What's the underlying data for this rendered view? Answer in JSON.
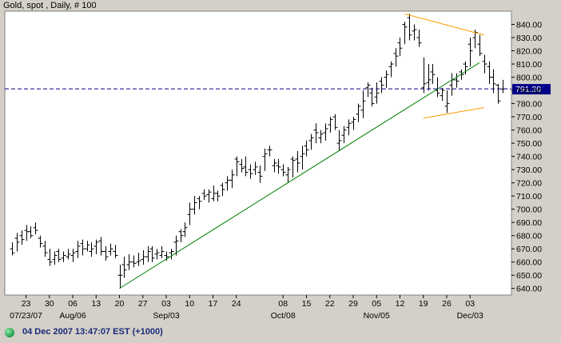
{
  "header": {
    "title": "Gold, spot , Daily, # 100"
  },
  "status": {
    "timestamp": "04 Dec 2007 13:47:07 EST (+1000)"
  },
  "chart_data": {
    "type": "ohlc",
    "title": "Gold, spot , Daily, # 100",
    "ylim": [
      635,
      850
    ],
    "y_ticks": [
      640,
      650,
      660,
      670,
      680,
      690,
      700,
      710,
      720,
      730,
      740,
      750,
      760,
      770,
      780,
      790,
      800,
      810,
      820,
      830,
      840
    ],
    "y_tick_labels": [
      "640.00",
      "650.00",
      "660.00",
      "670.00",
      "680.00",
      "690.00",
      "700.00",
      "710.00",
      "720.00",
      "730.00",
      "740.00",
      "750.00",
      "760.00",
      "770.00",
      "780.00",
      "790.00",
      "800.00",
      "810.00",
      "820.00",
      "830.00",
      "840.00"
    ],
    "x_ticks": [
      {
        "label": "23",
        "sub": "07/23/07",
        "i": 3
      },
      {
        "label": "30",
        "sub": "",
        "i": 8
      },
      {
        "label": "06",
        "sub": "Aug/06",
        "i": 13
      },
      {
        "label": "13",
        "sub": "",
        "i": 18
      },
      {
        "label": "20",
        "sub": "",
        "i": 23
      },
      {
        "label": "27",
        "sub": "",
        "i": 28
      },
      {
        "label": "03",
        "sub": "Sep/03",
        "i": 33
      },
      {
        "label": "10",
        "sub": "",
        "i": 38
      },
      {
        "label": "17",
        "sub": "",
        "i": 43
      },
      {
        "label": "24",
        "sub": "",
        "i": 48
      },
      {
        "label": "08",
        "sub": "Oct/08",
        "i": 58
      },
      {
        "label": "15",
        "sub": "",
        "i": 63
      },
      {
        "label": "22",
        "sub": "",
        "i": 68
      },
      {
        "label": "29",
        "sub": "",
        "i": 73
      },
      {
        "label": "05",
        "sub": "Nov/05",
        "i": 78
      },
      {
        "label": "12",
        "sub": "",
        "i": 83
      },
      {
        "label": "19",
        "sub": "",
        "i": 88
      },
      {
        "label": "26",
        "sub": "",
        "i": 93
      },
      {
        "label": "03",
        "sub": "Dec/03",
        "i": 98
      }
    ],
    "last_price": 791.2,
    "last_price_label": "791.20",
    "colors": {
      "bars": "#000000",
      "support": "#008000",
      "triangle": "#ff9900",
      "last_price": "#00008b",
      "label_bg": "#00008b"
    },
    "bars": [
      [
        670,
        665,
        675,
        667
      ],
      [
        678,
        668,
        682,
        675
      ],
      [
        680,
        673,
        684,
        677
      ],
      [
        684,
        676,
        688,
        683
      ],
      [
        683,
        678,
        687,
        680
      ],
      [
        686,
        681,
        690,
        684
      ],
      [
        678,
        671,
        680,
        674
      ],
      [
        672,
        664,
        676,
        667
      ],
      [
        662,
        657,
        670,
        660
      ],
      [
        662,
        658,
        668,
        665
      ],
      [
        668,
        660,
        670,
        662
      ],
      [
        663,
        660,
        668,
        665
      ],
      [
        664,
        662,
        670,
        666
      ],
      [
        665,
        660,
        670,
        667
      ],
      [
        668,
        663,
        676,
        672
      ],
      [
        674,
        665,
        677,
        670
      ],
      [
        670,
        668,
        676,
        673
      ],
      [
        668,
        664,
        675,
        670
      ],
      [
        672,
        666,
        677,
        675
      ],
      [
        676,
        665,
        679,
        668
      ],
      [
        668,
        661,
        672,
        664
      ],
      [
        668,
        665,
        674,
        670
      ],
      [
        668,
        663,
        673,
        665
      ],
      [
        650,
        640,
        658,
        650
      ],
      [
        658,
        648,
        664,
        654
      ],
      [
        658,
        654,
        666,
        660
      ],
      [
        660,
        656,
        665,
        659
      ],
      [
        660,
        657,
        667,
        661
      ],
      [
        662,
        658,
        669,
        664
      ],
      [
        664,
        660,
        672,
        668
      ],
      [
        670,
        660,
        672,
        663
      ],
      [
        666,
        662,
        670,
        667
      ],
      [
        665,
        663,
        672,
        668
      ],
      [
        665,
        661,
        668,
        664
      ],
      [
        667,
        662,
        670,
        668
      ],
      [
        675,
        665,
        680,
        676
      ],
      [
        683,
        675,
        685,
        680
      ],
      [
        683,
        679,
        690,
        686
      ],
      [
        696,
        688,
        705,
        700
      ],
      [
        700,
        696,
        710,
        705
      ],
      [
        708,
        700,
        710,
        706
      ],
      [
        712,
        707,
        715,
        710
      ],
      [
        711,
        705,
        715,
        713
      ],
      [
        708,
        706,
        718,
        712
      ],
      [
        712,
        706,
        714,
        710
      ],
      [
        718,
        710,
        720,
        715
      ],
      [
        720,
        714,
        725,
        722
      ],
      [
        722,
        716,
        730,
        726
      ],
      [
        738,
        725,
        740,
        736
      ],
      [
        734,
        728,
        738,
        731
      ],
      [
        732,
        725,
        740,
        728
      ],
      [
        730,
        723,
        734,
        727
      ],
      [
        730,
        726,
        736,
        732
      ],
      [
        728,
        720,
        733,
        725
      ],
      [
        740,
        729,
        746,
        742
      ],
      [
        745,
        740,
        748,
        745
      ],
      [
        733,
        728,
        738,
        735
      ],
      [
        733,
        727,
        738,
        732
      ],
      [
        730,
        725,
        734,
        728
      ],
      [
        726,
        720,
        732,
        730
      ],
      [
        738,
        724,
        740,
        737
      ],
      [
        738,
        728,
        744,
        735
      ],
      [
        740,
        730,
        748,
        742
      ],
      [
        748,
        740,
        752,
        745
      ],
      [
        752,
        745,
        757,
        754
      ],
      [
        760,
        750,
        765,
        758
      ],
      [
        754,
        750,
        760,
        757
      ],
      [
        758,
        752,
        765,
        761
      ],
      [
        764,
        758,
        770,
        768
      ],
      [
        770,
        760,
        772,
        762
      ],
      [
        750,
        744,
        760,
        752
      ],
      [
        756,
        750,
        763,
        760
      ],
      [
        762,
        756,
        768,
        765
      ],
      [
        766,
        760,
        770,
        768
      ],
      [
        772,
        766,
        780,
        778
      ],
      [
        775,
        769,
        790,
        782
      ],
      [
        792,
        785,
        796,
        794
      ],
      [
        788,
        778,
        792,
        780
      ],
      [
        785,
        780,
        796,
        788
      ],
      [
        797,
        788,
        800,
        794
      ],
      [
        800,
        792,
        805,
        802
      ],
      [
        808,
        800,
        812,
        810
      ],
      [
        818,
        808,
        822,
        816
      ],
      [
        826,
        816,
        830,
        822
      ],
      [
        840,
        825,
        842,
        838
      ],
      [
        845,
        828,
        848,
        832
      ],
      [
        835,
        828,
        840,
        836
      ],
      [
        830,
        823,
        836,
        826
      ],
      [
        792,
        788,
        815,
        795
      ],
      [
        796,
        790,
        810,
        798
      ],
      [
        804,
        795,
        810,
        802
      ],
      [
        790,
        785,
        800,
        788
      ],
      [
        786,
        782,
        792,
        790
      ],
      [
        778,
        773,
        790,
        780
      ],
      [
        794,
        786,
        803,
        798
      ],
      [
        798,
        792,
        803,
        797
      ],
      [
        804,
        798,
        806,
        802
      ],
      [
        810,
        802,
        812,
        808
      ],
      [
        825,
        808,
        830,
        820
      ],
      [
        830,
        822,
        836,
        834
      ],
      [
        825,
        816,
        832,
        818
      ],
      [
        812,
        803,
        817,
        810
      ],
      [
        808,
        795,
        812,
        800
      ],
      [
        800,
        788,
        806,
        795
      ],
      [
        794,
        780,
        795,
        782
      ],
      [
        791,
        788,
        798,
        791.2
      ]
    ],
    "trendlines": [
      {
        "name": "",
        "points": [
          [
            23,
            640
          ],
          [
            100,
            811
          ]
        ],
        "color": "#008000"
      },
      {
        "name": "",
        "points": [
          [
            84,
            848
          ],
          [
            101,
            832
          ]
        ],
        "color": "#ff9900"
      },
      {
        "name": "",
        "points": [
          [
            88,
            769
          ],
          [
            101,
            777
          ]
        ],
        "color": "#ff9900"
      }
    ]
  }
}
